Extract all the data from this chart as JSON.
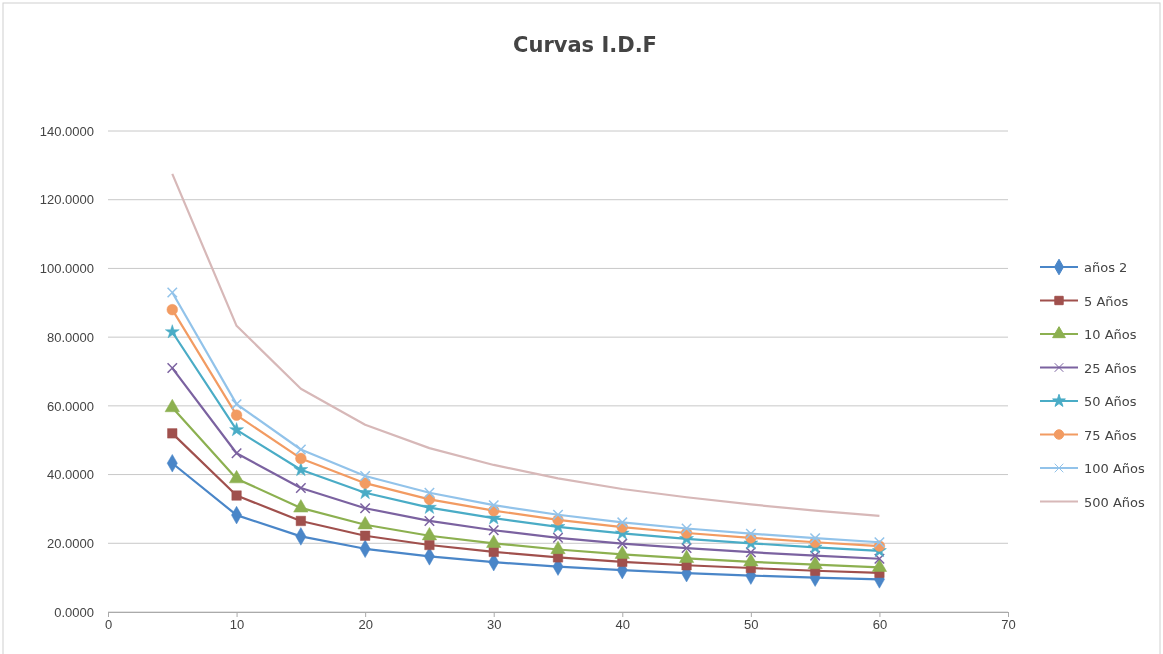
{
  "chart_data": {
    "type": "line",
    "title": "Curvas I.D.F",
    "x": [
      5,
      10,
      15,
      20,
      25,
      30,
      35,
      40,
      45,
      50,
      55,
      60
    ],
    "xlim": [
      0,
      70
    ],
    "xticks": [
      0,
      10,
      20,
      30,
      40,
      50,
      60,
      70
    ],
    "ylim": [
      0,
      140
    ],
    "yticks": [
      {
        "value": 0,
        "label": "0.0000"
      },
      {
        "value": 20,
        "label": "20.0000"
      },
      {
        "value": 40,
        "label": "40.0000"
      },
      {
        "value": 60,
        "label": "60.0000"
      },
      {
        "value": 80,
        "label": "80.0000"
      },
      {
        "value": 100,
        "label": "100.0000"
      },
      {
        "value": 120,
        "label": "120.0000"
      },
      {
        "value": 140,
        "label": "140.0000"
      }
    ],
    "grid": "y",
    "legend": "right",
    "series": [
      {
        "name": "años 2",
        "color": "#4a86c8",
        "marker": "diamond",
        "values": [
          43.3,
          28.2,
          22,
          18.4,
          16.2,
          14.5,
          13.2,
          12.2,
          11.3,
          10.6,
          10,
          9.5
        ]
      },
      {
        "name": "5 Años",
        "color": "#a0504d",
        "marker": "square",
        "values": [
          52,
          33.9,
          26.5,
          22.2,
          19.5,
          17.5,
          15.9,
          14.6,
          13.6,
          12.8,
          12,
          11.4
        ]
      },
      {
        "name": "10 Años",
        "color": "#8cb050",
        "marker": "triangle",
        "values": [
          59.5,
          38.8,
          30.3,
          25.4,
          22.2,
          20,
          18.2,
          16.8,
          15.6,
          14.6,
          13.8,
          13
        ]
      },
      {
        "name": "25 Años",
        "color": "#7b62a0",
        "marker": "cross",
        "values": [
          71,
          46.2,
          36.1,
          30.2,
          26.5,
          23.8,
          21.6,
          19.9,
          18.6,
          17.4,
          16.4,
          15.5
        ]
      },
      {
        "name": "50 Años",
        "color": "#4aacc6",
        "marker": "star",
        "values": [
          81.5,
          53,
          41.4,
          34.7,
          30.4,
          27.3,
          24.8,
          22.9,
          21.3,
          20,
          18.8,
          17.8
        ]
      },
      {
        "name": "75 Años",
        "color": "#f29b62",
        "marker": "circle",
        "values": [
          88,
          57.3,
          44.7,
          37.5,
          32.8,
          29.5,
          26.8,
          24.7,
          23,
          21.6,
          20.3,
          19.2
        ]
      },
      {
        "name": "100 Años",
        "color": "#92c3ea",
        "marker": "cross",
        "values": [
          93,
          60.5,
          47.3,
          39.6,
          34.7,
          31.1,
          28.3,
          26.1,
          24.3,
          22.8,
          21.5,
          20.3
        ]
      },
      {
        "name": "500 Años",
        "color": "#d7b8b8",
        "marker": "none",
        "values": [
          127.5,
          83.3,
          65,
          54.5,
          47.7,
          42.8,
          38.9,
          35.8,
          33.4,
          31.3,
          29.5,
          28
        ]
      }
    ]
  }
}
